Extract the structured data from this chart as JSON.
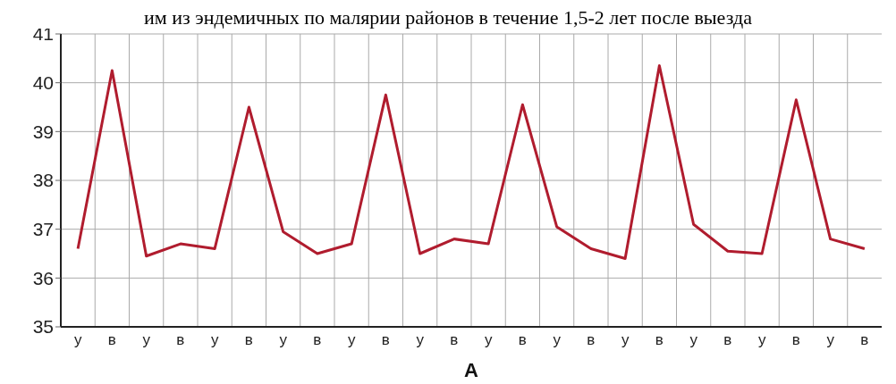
{
  "chart_data": {
    "type": "line",
    "title": "им из эндемичных по малярии районов в течение 1,5-2 лет после выезда",
    "xlabel": "А",
    "categories": [
      "у",
      "в",
      "у",
      "в",
      "у",
      "в",
      "у",
      "в",
      "у",
      "в",
      "у",
      "в",
      "у",
      "в",
      "у",
      "в",
      "у",
      "в",
      "у",
      "в",
      "у",
      "в",
      "у",
      "в"
    ],
    "series": [
      {
        "color": "#b01c2e",
        "values": [
          36.6,
          40.25,
          36.45,
          36.7,
          36.6,
          39.5,
          36.95,
          36.5,
          36.7,
          39.75,
          36.5,
          36.8,
          36.7,
          39.55,
          37.05,
          36.6,
          36.4,
          40.35,
          37.1,
          36.55,
          36.5,
          39.65,
          36.8,
          36.6
        ]
      }
    ],
    "ylim": [
      35,
      41
    ],
    "yticks": [
      35,
      36,
      37,
      38,
      39,
      40,
      41
    ],
    "grid": true,
    "marker": "none",
    "line_style": "solid",
    "legend": false
  }
}
